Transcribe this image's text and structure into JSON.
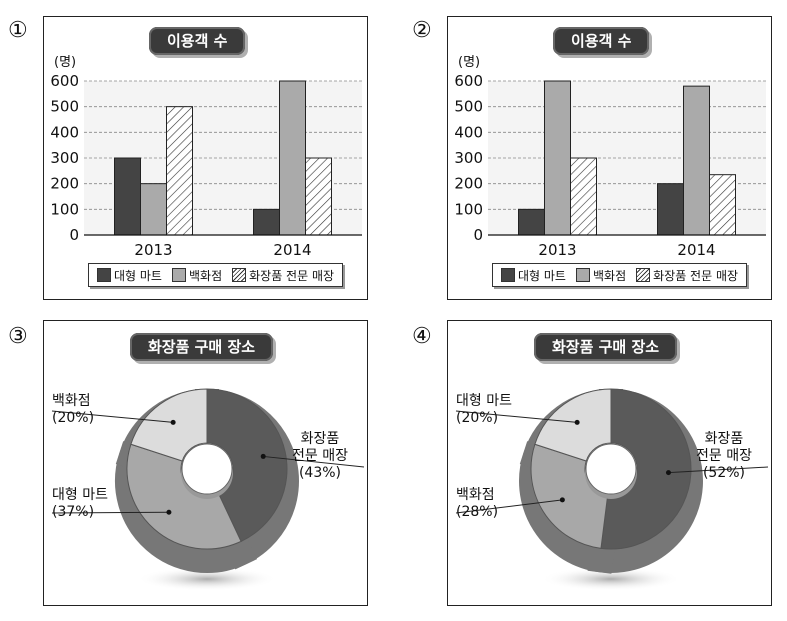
{
  "option_numbers": [
    "①",
    "②",
    "③",
    "④"
  ],
  "colors": {
    "dark": "#444444",
    "gray": "#aaaaaa",
    "light": "#dcdcdc",
    "mid": "#a8a8a8",
    "darkslice": "#5a5a5a"
  },
  "chart_data": [
    {
      "type": "bar",
      "title": "이용객 수",
      "ylabel": "(명)",
      "ylim": [
        0,
        600
      ],
      "yticks": [
        "0",
        "100",
        "200",
        "300",
        "400",
        "500",
        "600"
      ],
      "categories": [
        "2013",
        "2014"
      ],
      "series": [
        {
          "name": "대형 마트",
          "values": [
            300,
            100
          ],
          "pattern": "dark"
        },
        {
          "name": "백화점",
          "values": [
            200,
            600
          ],
          "pattern": "gray"
        },
        {
          "name": "화장품 전문 매장",
          "values": [
            500,
            300
          ],
          "pattern": "hatch"
        }
      ],
      "legend": "bottom"
    },
    {
      "type": "bar",
      "title": "이용객 수",
      "ylabel": "(명)",
      "ylim": [
        0,
        600
      ],
      "yticks": [
        "0",
        "100",
        "200",
        "300",
        "400",
        "500",
        "600"
      ],
      "categories": [
        "2013",
        "2014"
      ],
      "series": [
        {
          "name": "대형 마트",
          "values": [
            100,
            200
          ],
          "pattern": "dark"
        },
        {
          "name": "백화점",
          "values": [
            600,
            580
          ],
          "pattern": "gray"
        },
        {
          "name": "화장품 전문 매장",
          "values": [
            300,
            235
          ],
          "pattern": "hatch"
        }
      ],
      "legend": "bottom"
    },
    {
      "type": "pie",
      "title": "화장품 구매 장소",
      "slices": [
        {
          "name": "화장품 전문 매장",
          "label1": "화장품",
          "label2": "전문 매장",
          "pct_label": "(43%)",
          "value": 43,
          "shade": "darkslice"
        },
        {
          "name": "대형 마트",
          "label1": "대형 마트",
          "label2": "",
          "pct_label": "(37%)",
          "value": 37,
          "shade": "mid"
        },
        {
          "name": "백화점",
          "label1": "백화점",
          "label2": "",
          "pct_label": "(20%)",
          "value": 20,
          "shade": "light"
        }
      ]
    },
    {
      "type": "pie",
      "title": "화장품 구매 장소",
      "slices": [
        {
          "name": "화장품 전문 매장",
          "label1": "화장품",
          "label2": "전문 매장",
          "pct_label": "(52%)",
          "value": 52,
          "shade": "darkslice"
        },
        {
          "name": "백화점",
          "label1": "백화점",
          "label2": "",
          "pct_label": "(28%)",
          "value": 28,
          "shade": "mid"
        },
        {
          "name": "대형 마트",
          "label1": "대형 마트",
          "label2": "",
          "pct_label": "(20%)",
          "value": 20,
          "shade": "light"
        }
      ]
    }
  ]
}
